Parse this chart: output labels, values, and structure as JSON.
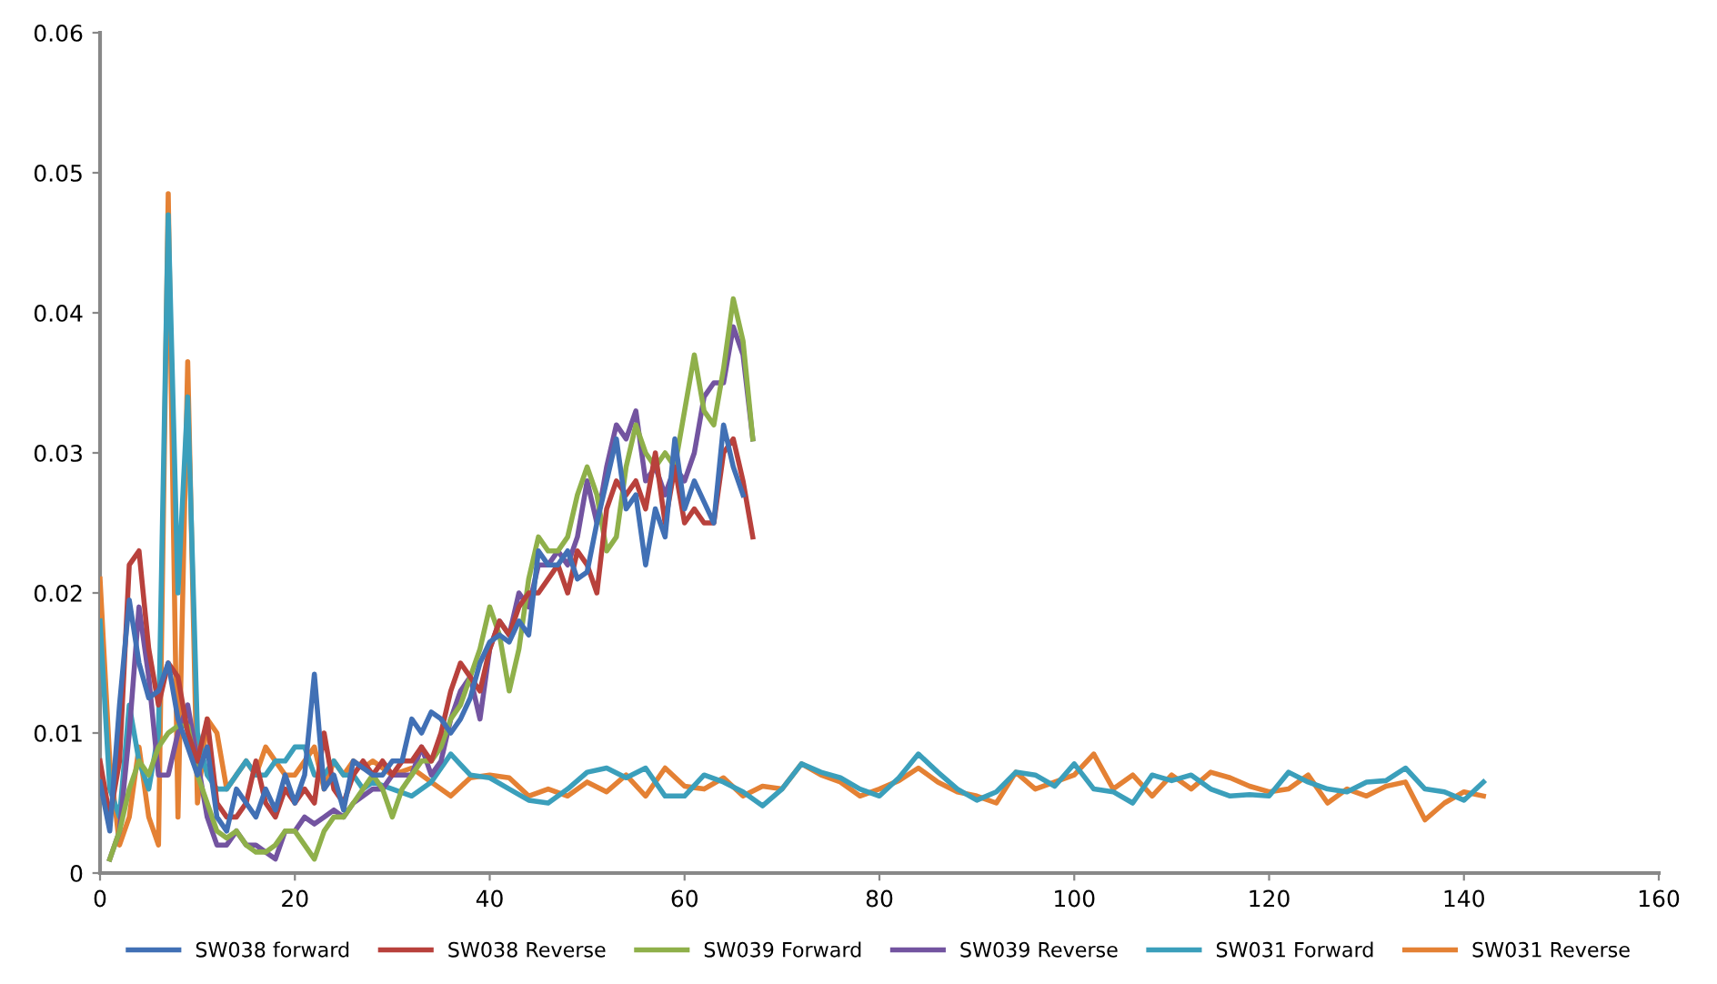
{
  "chart_data": {
    "type": "line",
    "xlim": [
      0,
      160
    ],
    "ylim": [
      0,
      0.06
    ],
    "xticks": [
      0,
      20,
      40,
      60,
      80,
      100,
      120,
      140,
      160
    ],
    "yticks": [
      0,
      0.01,
      0.02,
      0.03,
      0.04,
      0.05,
      0.06
    ],
    "grid": false,
    "legend": "bottom",
    "marker": "none",
    "line_style": "solid",
    "series": [
      {
        "name": "SW038 forward",
        "color": "#4170b5",
        "x": [
          0,
          1,
          2,
          3,
          4,
          5,
          6,
          7,
          8,
          9,
          10,
          11,
          12,
          13,
          14,
          15,
          16,
          17,
          18,
          19,
          20,
          21,
          22,
          23,
          24,
          25,
          26,
          27,
          28,
          29,
          30,
          31,
          32,
          33,
          34,
          35,
          36,
          37,
          38,
          39,
          40,
          41,
          42,
          43,
          44,
          45,
          46,
          47,
          48,
          49,
          50,
          51,
          52,
          53,
          54,
          55,
          56,
          57,
          58,
          59,
          60,
          61,
          62,
          63,
          64,
          65,
          66
        ],
        "values": [
          0.0065,
          0.003,
          0.012,
          0.0195,
          0.015,
          0.0125,
          0.013,
          0.015,
          0.011,
          0.009,
          0.007,
          0.009,
          0.004,
          0.003,
          0.006,
          0.005,
          0.004,
          0.006,
          0.0045,
          0.007,
          0.005,
          0.007,
          0.0142,
          0.006,
          0.007,
          0.0045,
          0.008,
          0.0075,
          0.007,
          0.007,
          0.008,
          0.008,
          0.011,
          0.01,
          0.0115,
          0.011,
          0.01,
          0.011,
          0.0125,
          0.015,
          0.0165,
          0.017,
          0.0165,
          0.018,
          0.017,
          0.023,
          0.022,
          0.022,
          0.023,
          0.021,
          0.0215,
          0.025,
          0.028,
          0.031,
          0.026,
          0.027,
          0.022,
          0.026,
          0.024,
          0.031,
          0.026,
          0.028,
          0.0265,
          0.025,
          0.032,
          0.029,
          0.027
        ]
      },
      {
        "name": "SW038 Reverse",
        "color": "#b8413c",
        "x": [
          0,
          1,
          2,
          3,
          4,
          5,
          6,
          7,
          8,
          9,
          10,
          11,
          12,
          13,
          14,
          15,
          16,
          17,
          18,
          19,
          20,
          21,
          22,
          23,
          24,
          25,
          26,
          27,
          28,
          29,
          30,
          31,
          32,
          33,
          34,
          35,
          36,
          37,
          38,
          39,
          40,
          41,
          42,
          43,
          44,
          45,
          46,
          47,
          48,
          49,
          50,
          51,
          52,
          53,
          54,
          55,
          56,
          57,
          58,
          59,
          60,
          61,
          62,
          63,
          64,
          65,
          66,
          67
        ],
        "values": [
          0.008,
          0.004,
          0.008,
          0.022,
          0.023,
          0.016,
          0.012,
          0.015,
          0.014,
          0.01,
          0.008,
          0.011,
          0.005,
          0.004,
          0.004,
          0.005,
          0.008,
          0.005,
          0.004,
          0.006,
          0.005,
          0.006,
          0.005,
          0.01,
          0.006,
          0.005,
          0.007,
          0.008,
          0.007,
          0.008,
          0.007,
          0.008,
          0.008,
          0.009,
          0.008,
          0.01,
          0.013,
          0.015,
          0.014,
          0.013,
          0.016,
          0.018,
          0.017,
          0.019,
          0.02,
          0.02,
          0.021,
          0.022,
          0.02,
          0.023,
          0.022,
          0.02,
          0.026,
          0.028,
          0.027,
          0.028,
          0.026,
          0.03,
          0.025,
          0.029,
          0.025,
          0.026,
          0.025,
          0.025,
          0.03,
          0.031,
          0.028,
          0.024
        ]
      },
      {
        "name": "SW039 Forward",
        "color": "#8fb04a",
        "x": [
          1,
          2,
          3,
          4,
          5,
          6,
          7,
          8,
          9,
          10,
          11,
          12,
          13,
          14,
          15,
          16,
          17,
          18,
          19,
          20,
          21,
          22,
          23,
          24,
          25,
          26,
          27,
          28,
          29,
          30,
          31,
          32,
          33,
          34,
          35,
          36,
          37,
          38,
          39,
          40,
          41,
          42,
          43,
          44,
          45,
          46,
          47,
          48,
          49,
          50,
          51,
          52,
          53,
          54,
          55,
          56,
          57,
          58,
          59,
          60,
          61,
          62,
          63,
          64,
          65,
          66,
          67
        ],
        "values": [
          0.001,
          0.003,
          0.006,
          0.008,
          0.007,
          0.009,
          0.01,
          0.0105,
          0.0105,
          0.007,
          0.005,
          0.003,
          0.0025,
          0.003,
          0.002,
          0.0015,
          0.0015,
          0.002,
          0.003,
          0.003,
          0.002,
          0.001,
          0.003,
          0.004,
          0.004,
          0.005,
          0.006,
          0.007,
          0.006,
          0.004,
          0.006,
          0.007,
          0.008,
          0.008,
          0.009,
          0.011,
          0.012,
          0.014,
          0.016,
          0.019,
          0.017,
          0.013,
          0.016,
          0.021,
          0.024,
          0.023,
          0.023,
          0.024,
          0.027,
          0.029,
          0.027,
          0.023,
          0.024,
          0.029,
          0.032,
          0.03,
          0.029,
          0.03,
          0.029,
          0.033,
          0.037,
          0.033,
          0.032,
          0.036,
          0.041,
          0.038,
          0.031
        ]
      },
      {
        "name": "SW039 Reverse",
        "color": "#7354a0",
        "x": [
          1,
          2,
          3,
          4,
          5,
          6,
          7,
          8,
          9,
          10,
          11,
          12,
          13,
          14,
          15,
          16,
          17,
          18,
          19,
          20,
          21,
          22,
          23,
          24,
          25,
          26,
          27,
          28,
          29,
          30,
          31,
          32,
          33,
          34,
          35,
          36,
          37,
          38,
          39,
          40,
          41,
          42,
          43,
          44,
          45,
          46,
          47,
          48,
          49,
          50,
          51,
          52,
          53,
          54,
          55,
          56,
          57,
          58,
          59,
          60,
          61,
          62,
          63,
          64,
          65,
          66,
          67
        ],
        "values": [
          0.001,
          0.003,
          0.01,
          0.019,
          0.014,
          0.007,
          0.007,
          0.01,
          0.012,
          0.008,
          0.004,
          0.002,
          0.002,
          0.003,
          0.002,
          0.002,
          0.0015,
          0.001,
          0.003,
          0.003,
          0.004,
          0.0035,
          0.004,
          0.0045,
          0.004,
          0.005,
          0.0055,
          0.006,
          0.006,
          0.007,
          0.007,
          0.007,
          0.009,
          0.007,
          0.008,
          0.011,
          0.013,
          0.014,
          0.011,
          0.016,
          0.018,
          0.017,
          0.02,
          0.019,
          0.022,
          0.022,
          0.023,
          0.022,
          0.024,
          0.028,
          0.025,
          0.029,
          0.032,
          0.031,
          0.033,
          0.028,
          0.029,
          0.027,
          0.029,
          0.028,
          0.03,
          0.034,
          0.035,
          0.035,
          0.039,
          0.037,
          0.031
        ]
      },
      {
        "name": "SW031 Forward",
        "color": "#3b9fbb",
        "x": [
          0,
          1,
          2,
          3,
          4,
          5,
          6,
          7,
          8,
          9,
          10,
          11,
          12,
          13,
          14,
          15,
          16,
          17,
          18,
          19,
          20,
          21,
          22,
          23,
          24,
          25,
          26,
          27,
          28,
          30,
          32,
          34,
          36,
          38,
          40,
          42,
          44,
          46,
          48,
          50,
          52,
          54,
          56,
          58,
          60,
          62,
          64,
          66,
          68,
          70,
          72,
          74,
          76,
          78,
          80,
          82,
          84,
          86,
          88,
          90,
          92,
          94,
          96,
          98,
          100,
          102,
          104,
          106,
          108,
          110,
          112,
          114,
          116,
          118,
          120,
          122,
          124,
          126,
          128,
          130,
          132,
          134,
          136,
          138,
          140,
          142
        ],
        "values": [
          0.018,
          0.006,
          0.004,
          0.012,
          0.008,
          0.006,
          0.01,
          0.047,
          0.02,
          0.034,
          0.01,
          0.007,
          0.006,
          0.006,
          0.007,
          0.008,
          0.007,
          0.007,
          0.008,
          0.008,
          0.009,
          0.009,
          0.007,
          0.007,
          0.008,
          0.007,
          0.007,
          0.006,
          0.0065,
          0.006,
          0.0055,
          0.0065,
          0.0085,
          0.007,
          0.0068,
          0.006,
          0.0052,
          0.005,
          0.006,
          0.0072,
          0.0075,
          0.0068,
          0.0075,
          0.0055,
          0.0055,
          0.007,
          0.0065,
          0.0058,
          0.0048,
          0.006,
          0.0078,
          0.0072,
          0.0068,
          0.006,
          0.0055,
          0.0068,
          0.0085,
          0.0072,
          0.006,
          0.0052,
          0.0058,
          0.0072,
          0.007,
          0.0062,
          0.0078,
          0.006,
          0.0058,
          0.005,
          0.007,
          0.0066,
          0.007,
          0.006,
          0.0055,
          0.0056,
          0.0055,
          0.0072,
          0.0065,
          0.006,
          0.0058,
          0.0065,
          0.0066,
          0.0075,
          0.006,
          0.0058,
          0.0052,
          0.0065
        ]
      },
      {
        "name": "SW031 Reverse",
        "color": "#e48134",
        "x": [
          0,
          1,
          2,
          3,
          4,
          5,
          6,
          7,
          8,
          9,
          10,
          11,
          12,
          13,
          14,
          15,
          16,
          17,
          18,
          19,
          20,
          21,
          22,
          23,
          24,
          25,
          26,
          27,
          28,
          30,
          32,
          34,
          36,
          38,
          40,
          42,
          44,
          46,
          48,
          50,
          52,
          54,
          56,
          58,
          60,
          62,
          64,
          66,
          68,
          70,
          72,
          74,
          76,
          78,
          80,
          82,
          84,
          86,
          88,
          90,
          92,
          94,
          96,
          98,
          100,
          102,
          104,
          106,
          108,
          110,
          112,
          114,
          116,
          118,
          120,
          122,
          124,
          126,
          128,
          130,
          132,
          134,
          136,
          138,
          140,
          142
        ],
        "values": [
          0.021,
          0.008,
          0.002,
          0.004,
          0.009,
          0.004,
          0.002,
          0.0485,
          0.004,
          0.0365,
          0.005,
          0.011,
          0.01,
          0.006,
          0.007,
          0.008,
          0.007,
          0.009,
          0.008,
          0.007,
          0.007,
          0.008,
          0.009,
          0.006,
          0.008,
          0.007,
          0.008,
          0.0075,
          0.008,
          0.007,
          0.0075,
          0.0065,
          0.0055,
          0.0068,
          0.007,
          0.0068,
          0.0055,
          0.006,
          0.0055,
          0.0065,
          0.0058,
          0.007,
          0.0055,
          0.0075,
          0.0062,
          0.006,
          0.0068,
          0.0055,
          0.0062,
          0.006,
          0.0078,
          0.007,
          0.0065,
          0.0055,
          0.006,
          0.0066,
          0.0075,
          0.0065,
          0.0058,
          0.0055,
          0.005,
          0.0072,
          0.006,
          0.0065,
          0.007,
          0.0085,
          0.006,
          0.007,
          0.0055,
          0.007,
          0.006,
          0.0072,
          0.0068,
          0.0062,
          0.0058,
          0.006,
          0.007,
          0.005,
          0.006,
          0.0055,
          0.0062,
          0.0065,
          0.0038,
          0.005,
          0.0058,
          0.0055
        ]
      }
    ]
  }
}
